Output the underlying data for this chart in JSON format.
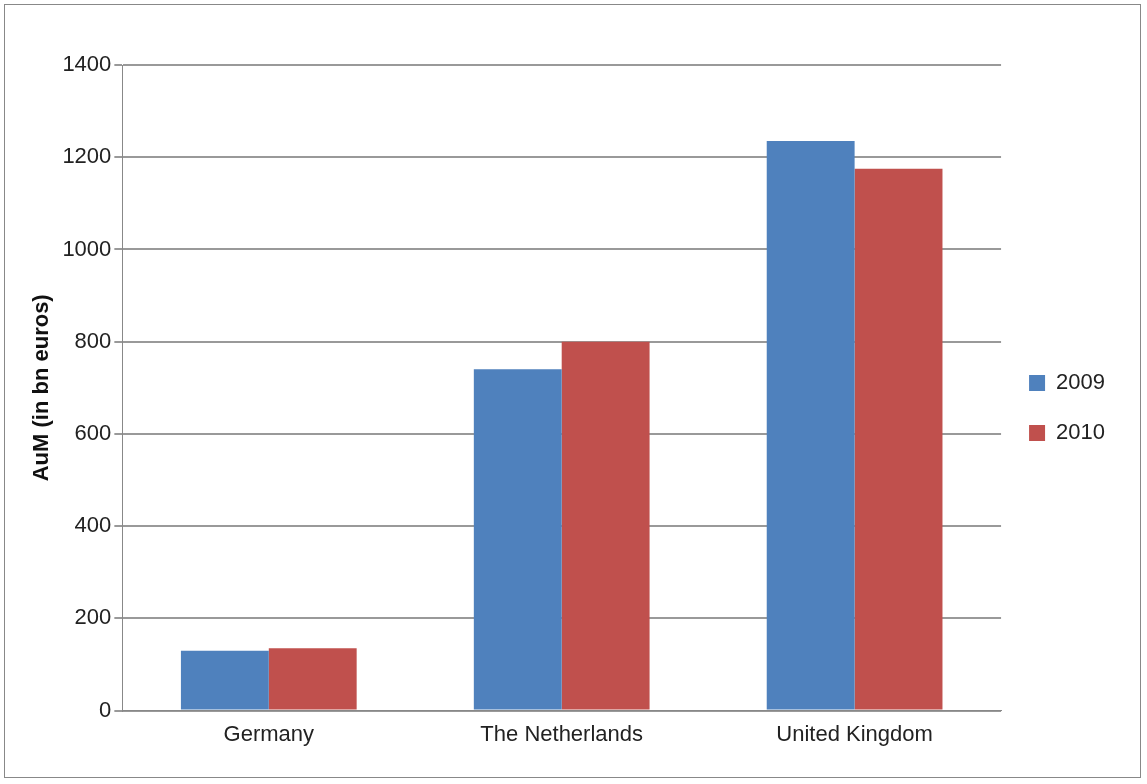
{
  "chart_data": {
    "type": "bar",
    "ylabel": "AuM (in bn euros)",
    "categories": [
      "Germany",
      "The Netherlands",
      "United Kingdom"
    ],
    "series": [
      {
        "name": "2009",
        "color": "#4f81bd",
        "values": [
          130,
          740,
          1235
        ]
      },
      {
        "name": "2010",
        "color": "#c0504d",
        "values": [
          135,
          800,
          1175
        ]
      }
    ],
    "ylim": [
      0,
      1400
    ],
    "yticks": [
      0,
      200,
      400,
      600,
      800,
      1000,
      1200,
      1400
    ],
    "grid": "y",
    "legend": "right"
  }
}
